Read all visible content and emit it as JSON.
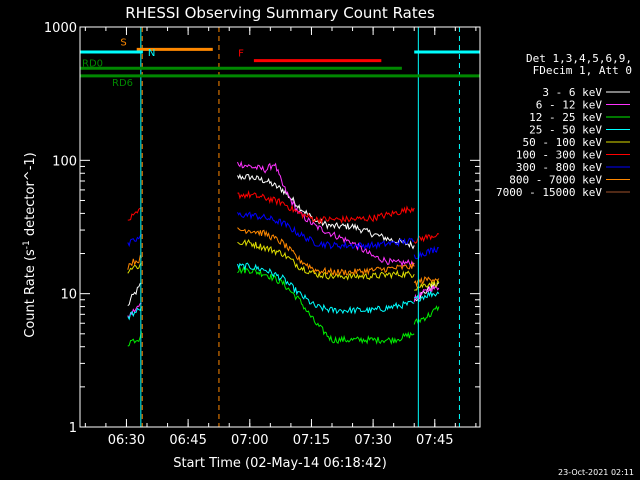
{
  "chart_data": {
    "type": "line",
    "title": "RHESSI Observing Summary Count Rates",
    "xlabel": "Start Time (02-May-14 06:18:42)",
    "ylabel": "Count Rate (s^-1 detector^-1)",
    "y_scale": "log",
    "ylim": [
      1,
      1000
    ],
    "y_ticks": [
      {
        "value": 1,
        "label": "1"
      },
      {
        "value": 10,
        "label": "10"
      },
      {
        "value": 100,
        "label": "100"
      },
      {
        "value": 1000,
        "label": "1000"
      }
    ],
    "xlim": [
      "06:18:42",
      "07:56:00"
    ],
    "x_ticks": [
      {
        "value": "06:30",
        "label": "06:30"
      },
      {
        "value": "06:45",
        "label": "06:45"
      },
      {
        "value": "07:00",
        "label": "07:00"
      },
      {
        "value": "07:15",
        "label": "07:15"
      },
      {
        "value": "07:30",
        "label": "07:30"
      },
      {
        "value": "07:45",
        "label": "07:45"
      }
    ],
    "legend_header": [
      "Det 1,3,4,5,6,9,",
      "FDecim 1, Att 0"
    ],
    "legend_position": "right",
    "series": [
      {
        "name": "3 - 6 keV",
        "color": "#ffffff",
        "segments": [
          {
            "x": [
              "06:30:20",
              "06:31:00",
              "06:32:00",
              "06:33:00",
              "06:33:40"
            ],
            "y": [
              8,
              9,
              10,
              11,
              12
            ]
          },
          {
            "x": [
              "06:57:00",
              "07:00:00",
              "07:04:00",
              "07:08:00",
              "07:12:00",
              "07:16:00",
              "07:20:00",
              "07:25:00",
              "07:30:00",
              "07:35:00",
              "07:40:00"
            ],
            "y": [
              75,
              75,
              70,
              60,
              45,
              35,
              32,
              32,
              28,
              25,
              23
            ]
          },
          {
            "x": [
              "07:40:00",
              "07:42:00",
              "07:44:00",
              "07:46:00"
            ],
            "y": [
              9,
              10,
              11,
              12
            ]
          }
        ]
      },
      {
        "name": "6 - 12 keV",
        "color": "#ff33ff",
        "segments": [
          {
            "x": [
              "06:30:20",
              "06:31:00",
              "06:32:00",
              "06:33:00",
              "06:33:40"
            ],
            "y": [
              6.5,
              7,
              7.5,
              8,
              8.5
            ]
          },
          {
            "x": [
              "06:57:00",
              "07:00:00",
              "07:04:00",
              "07:06:00",
              "07:08:00",
              "07:10:00",
              "07:12:00",
              "07:16:00",
              "07:20:00",
              "07:25:00",
              "07:30:00",
              "07:35:00",
              "07:40:00"
            ],
            "y": [
              95,
              90,
              85,
              95,
              65,
              50,
              40,
              32,
              28,
              24,
              19,
              17,
              17
            ]
          },
          {
            "x": [
              "07:40:00",
              "07:42:00",
              "07:44:00",
              "07:46:00"
            ],
            "y": [
              9,
              10,
              11,
              11
            ]
          }
        ]
      },
      {
        "name": "12 - 25 keV",
        "color": "#00ee00",
        "segments": [
          {
            "x": [
              "06:30:20",
              "06:31:00",
              "06:32:00",
              "06:33:00",
              "06:33:40"
            ],
            "y": [
              4.2,
              4.4,
              4.5,
              4.6,
              5.2
            ]
          },
          {
            "x": [
              "06:57:00",
              "07:00:00",
              "07:04:00",
              "07:08:00",
              "07:12:00",
              "07:16:00",
              "07:20:00",
              "07:25:00",
              "07:30:00",
              "07:35:00",
              "07:40:00"
            ],
            "y": [
              15,
              15,
              14,
              12,
              9,
              6,
              4.5,
              4.5,
              4.5,
              4.5,
              5
            ]
          },
          {
            "x": [
              "07:40:00",
              "07:42:00",
              "07:44:00",
              "07:46:00"
            ],
            "y": [
              6,
              6.5,
              7,
              8
            ]
          }
        ]
      },
      {
        "name": "25 - 50 keV",
        "color": "#00ffff",
        "segments": [
          {
            "x": [
              "06:30:20",
              "06:31:00",
              "06:32:00",
              "06:33:00",
              "06:33:40"
            ],
            "y": [
              6.5,
              7,
              7.2,
              7.5,
              8
            ]
          },
          {
            "x": [
              "06:57:00",
              "07:00:00",
              "07:04:00",
              "07:08:00",
              "07:12:00",
              "07:16:00",
              "07:20:00",
              "07:25:00",
              "07:30:00",
              "07:35:00",
              "07:40:00"
            ],
            "y": [
              16,
              16,
              15,
              13,
              10,
              8,
              7.5,
              7.5,
              7.5,
              8,
              8.5
            ]
          },
          {
            "x": [
              "07:40:00",
              "07:42:00",
              "07:44:00",
              "07:46:00"
            ],
            "y": [
              9,
              9.5,
              10,
              10
            ]
          }
        ]
      },
      {
        "name": "50 - 100 keV",
        "color": "#dddd00",
        "segments": [
          {
            "x": [
              "06:30:20",
              "06:31:00",
              "06:32:00",
              "06:33:00",
              "06:33:40"
            ],
            "y": [
              15,
              15.5,
              16,
              16,
              17
            ]
          },
          {
            "x": [
              "06:57:00",
              "07:00:00",
              "07:04:00",
              "07:08:00",
              "07:12:00",
              "07:16:00",
              "07:20:00",
              "07:25:00",
              "07:30:00",
              "07:35:00",
              "07:40:00"
            ],
            "y": [
              24,
              24,
              22,
              20,
              16,
              14,
              13.5,
              13.5,
              13.5,
              14,
              14
            ]
          },
          {
            "x": [
              "07:40:00",
              "07:42:00",
              "07:44:00",
              "07:46:00"
            ],
            "y": [
              11,
              11.5,
              12,
              12
            ]
          }
        ]
      },
      {
        "name": "100 - 300 keV",
        "color": "#ff0000",
        "segments": [
          {
            "x": [
              "06:30:20",
              "06:31:00",
              "06:32:00",
              "06:33:00",
              "06:33:40"
            ],
            "y": [
              35,
              37,
              38,
              41,
              44
            ]
          },
          {
            "x": [
              "06:57:00",
              "07:00:00",
              "07:04:00",
              "07:08:00",
              "07:12:00",
              "07:16:00",
              "07:20:00",
              "07:25:00",
              "07:30:00",
              "07:35:00",
              "07:40:00"
            ],
            "y": [
              55,
              55,
              52,
              48,
              40,
              36,
              36,
              36,
              37,
              40,
              44
            ]
          },
          {
            "x": [
              "07:40:00",
              "07:42:00",
              "07:44:00",
              "07:46:00"
            ],
            "y": [
              25,
              26,
              27,
              28
            ]
          }
        ]
      },
      {
        "name": "300 - 800 keV",
        "color": "#0000ff",
        "segments": [
          {
            "x": [
              "06:30:20",
              "06:31:00",
              "06:32:00",
              "06:33:00",
              "06:33:40"
            ],
            "y": [
              23,
              24,
              25,
              26,
              28
            ]
          },
          {
            "x": [
              "06:57:00",
              "07:00:00",
              "07:04:00",
              "07:08:00",
              "07:12:00",
              "07:16:00",
              "07:20:00",
              "07:25:00",
              "07:30:00",
              "07:35:00",
              "07:40:00"
            ],
            "y": [
              39,
              39,
              37,
              34,
              28,
              24,
              23,
              23,
              23,
              24,
              25
            ]
          },
          {
            "x": [
              "07:40:00",
              "07:42:00",
              "07:44:00",
              "07:46:00"
            ],
            "y": [
              19,
              20,
              21,
              22
            ]
          }
        ]
      },
      {
        "name": "800 - 7000 keV",
        "color": "#ff8800",
        "segments": [
          {
            "x": [
              "06:30:20",
              "06:31:00",
              "06:32:00",
              "06:33:00",
              "06:33:40"
            ],
            "y": [
              16,
              17,
              17.5,
              18,
              18.5
            ]
          },
          {
            "x": [
              "06:57:00",
              "07:00:00",
              "07:04:00",
              "07:08:00",
              "07:12:00",
              "07:16:00",
              "07:20:00",
              "07:25:00",
              "07:30:00",
              "07:35:00",
              "07:40:00"
            ],
            "y": [
              30,
              30,
              28,
              24,
              18,
              15,
              14.5,
              14.5,
              15,
              15.5,
              16
            ]
          },
          {
            "x": [
              "07:40:00",
              "07:42:00",
              "07:44:00",
              "07:46:00"
            ],
            "y": [
              12,
              12.5,
              13,
              13
            ]
          }
        ]
      },
      {
        "name": "7000 - 15000 keV",
        "color": "#a0522d",
        "segments": []
      }
    ],
    "annotations": [
      {
        "label": "S",
        "color": "#ff8800",
        "bar_start": "06:32:30",
        "bar_end": "06:51:00",
        "level": 680
      },
      {
        "label": "N",
        "color": "#00ffff",
        "bar_start": "06:18:42",
        "bar_end": "06:34:00",
        "level": 650,
        "bar2_start": "07:40:00",
        "bar2_end": "07:56:00"
      },
      {
        "label": "F",
        "color": "#ff0000",
        "bar_start": "07:01:00",
        "bar_end": "07:32:00",
        "level": 560
      },
      {
        "label": "RD0",
        "color": "#008800",
        "bar_start": "06:18:42",
        "bar_end": "07:37:00",
        "level": 490
      },
      {
        "label": "RD6",
        "color": "#008800",
        "bar_start": "06:18:42",
        "bar_end": "07:56:00",
        "level": 430
      }
    ],
    "vertical_lines": [
      {
        "x": "06:18:42",
        "color": "#00ffff",
        "style": "solid"
      },
      {
        "x": "06:33:30",
        "color": "#00ffff",
        "style": "solid"
      },
      {
        "x": "06:33:50",
        "color": "#ff8800",
        "style": "dashed"
      },
      {
        "x": "06:52:30",
        "color": "#ff8800",
        "style": "dashed"
      },
      {
        "x": "07:41:00",
        "color": "#00ffff",
        "style": "solid"
      },
      {
        "x": "07:51:00",
        "color": "#00ffff",
        "style": "dashed"
      }
    ]
  },
  "footer": {
    "date": "23-Oct-2021 02:11"
  }
}
